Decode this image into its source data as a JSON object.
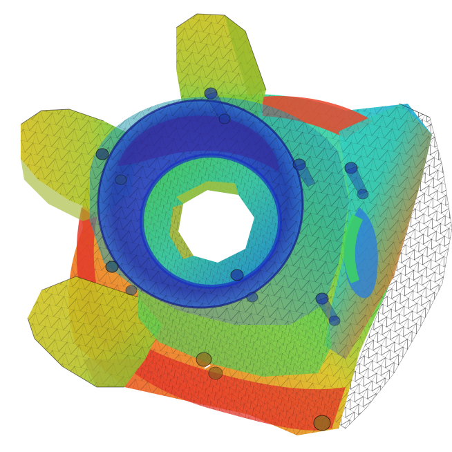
{
  "scene": {
    "background": "#ffffff",
    "mesh_line_color": "#1a1a1a",
    "palette": {
      "red": "#e8372a",
      "orange": "#f07a22",
      "yellow": "#d9c21e",
      "olive": "#b6bb2a",
      "green": "#4fd24a",
      "cyan": "#2fd1c8",
      "blue": "#1f33c8",
      "navy": "#1a1f8a",
      "teal": "#2a9fb0"
    },
    "icons": {
      "part": "mechanical-hub-fem-mesh"
    }
  }
}
